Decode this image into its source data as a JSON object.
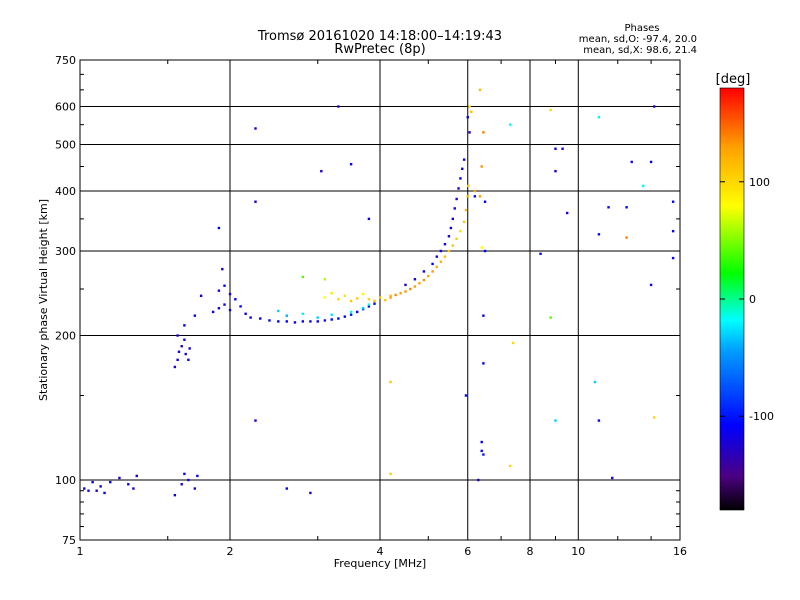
{
  "chart_data": {
    "type": "scatter",
    "title": "Tromsø 20161020 14:18:00–14:19:43",
    "subtitle": "RwPretec (8p)",
    "stats": {
      "header": "Phases",
      "line_o": "mean, sd,O: -97.4, 20.0",
      "line_x": "mean, sd,X: 98.6, 21.4"
    },
    "xlabel": "Frequency [MHz]",
    "ylabel": "Stationary phase Virtual Height [km]",
    "x_scale": "log",
    "y_scale": "log",
    "xlim": [
      1,
      16
    ],
    "ylim": [
      75,
      750
    ],
    "grid": true,
    "x_ticks": [
      1,
      2,
      4,
      6,
      8,
      10,
      16
    ],
    "x_tick_labels": [
      "1",
      "2",
      "4",
      "6",
      "8",
      "10",
      "16"
    ],
    "y_ticks": [
      75,
      100,
      200,
      300,
      400,
      500,
      600,
      750
    ],
    "y_tick_labels": [
      "75",
      "100",
      "200",
      "300",
      "400",
      "500",
      "600",
      "750"
    ],
    "colorbar": {
      "label": "[deg]",
      "range": [
        -180,
        180
      ],
      "ticks": [
        100,
        0,
        -100
      ],
      "tick_labels": [
        "100",
        "0",
        "-100"
      ],
      "colormap": [
        "#000000",
        "#4b0082",
        "#0000ff",
        "#00a0ff",
        "#00ffff",
        "#00ff00",
        "#ffff00",
        "#ffa000",
        "#ff0000"
      ]
    },
    "series": [
      {
        "points": [
          [
            1.02,
            96,
            -115
          ],
          [
            1.04,
            95,
            -120
          ],
          [
            1.06,
            99,
            -110
          ],
          [
            1.08,
            95,
            -125
          ],
          [
            1.1,
            97,
            -118
          ],
          [
            1.12,
            94,
            -112
          ],
          [
            1.15,
            99,
            -108
          ],
          [
            1.2,
            101,
            -120
          ],
          [
            1.25,
            98,
            -115
          ],
          [
            1.3,
            102,
            -118
          ],
          [
            1.28,
            96,
            -122
          ],
          [
            1.55,
            93,
            -115
          ],
          [
            1.6,
            98,
            -120
          ],
          [
            1.62,
            103,
            -110
          ],
          [
            1.65,
            100,
            -118
          ],
          [
            1.7,
            96,
            -125
          ],
          [
            1.72,
            102,
            -112
          ],
          [
            1.55,
            172,
            -120
          ],
          [
            1.57,
            178,
            -115
          ],
          [
            1.58,
            185,
            -118
          ],
          [
            1.6,
            190,
            -125
          ],
          [
            1.62,
            196,
            -110
          ],
          [
            1.63,
            183,
            -122
          ],
          [
            1.65,
            178,
            -115
          ],
          [
            1.66,
            188,
            -118
          ],
          [
            1.57,
            200,
            -120
          ],
          [
            1.62,
            210,
            -110
          ],
          [
            1.7,
            220,
            -115
          ],
          [
            1.75,
            242,
            -118
          ],
          [
            1.85,
            224,
            -110
          ],
          [
            1.9,
            228,
            -115
          ],
          [
            1.95,
            232,
            -118
          ],
          [
            2.0,
            226,
            -120
          ],
          [
            2.05,
            238,
            -110
          ],
          [
            2.1,
            230,
            -105
          ],
          [
            2.15,
            222,
            -115
          ],
          [
            2.2,
            218,
            -118
          ],
          [
            2.3,
            217,
            -110
          ],
          [
            2.4,
            215,
            -105
          ],
          [
            2.5,
            214,
            -110
          ],
          [
            2.6,
            214,
            -108
          ],
          [
            2.7,
            213,
            -112
          ],
          [
            2.8,
            214,
            -110
          ],
          [
            2.9,
            214,
            -105
          ],
          [
            3.0,
            214,
            -108
          ],
          [
            3.1,
            215,
            -100
          ],
          [
            3.2,
            216,
            -110
          ],
          [
            3.3,
            217,
            -105
          ],
          [
            3.4,
            219,
            -108
          ],
          [
            3.5,
            221,
            -100
          ],
          [
            3.6,
            224,
            -105
          ],
          [
            3.7,
            227,
            -100
          ],
          [
            3.8,
            230,
            -110
          ],
          [
            3.9,
            233,
            -105
          ],
          [
            1.9,
            248,
            -118
          ],
          [
            1.95,
            254,
            -112
          ],
          [
            2.0,
            244,
            -120
          ],
          [
            1.93,
            275,
            -120
          ],
          [
            4.5,
            255,
            -120
          ],
          [
            4.7,
            262,
            -118
          ],
          [
            4.9,
            272,
            -115
          ],
          [
            5.1,
            282,
            -110
          ],
          [
            5.2,
            292,
            -118
          ],
          [
            5.3,
            300,
            -112
          ],
          [
            5.4,
            310,
            -118
          ],
          [
            5.5,
            322,
            -120
          ],
          [
            5.55,
            335,
            -115
          ],
          [
            5.6,
            350,
            -118
          ],
          [
            5.65,
            368,
            -112
          ],
          [
            5.7,
            385,
            -120
          ],
          [
            5.75,
            405,
            -118
          ],
          [
            5.8,
            425,
            -110
          ],
          [
            5.85,
            445,
            -115
          ],
          [
            5.9,
            465,
            -112
          ],
          [
            3.3,
            600,
            -120
          ],
          [
            2.25,
            540,
            -115
          ],
          [
            3.05,
            440,
            -125
          ],
          [
            3.5,
            455,
            -115
          ],
          [
            3.8,
            350,
            -110
          ],
          [
            1.9,
            335,
            -110
          ],
          [
            2.25,
            380,
            -118
          ],
          [
            2.25,
            133,
            -118
          ],
          [
            2.6,
            96,
            -110
          ],
          [
            2.9,
            94,
            -130
          ],
          [
            5.95,
            150,
            -115
          ],
          [
            6.3,
            100,
            -125
          ],
          [
            6.4,
            120,
            -110
          ],
          [
            6.4,
            115,
            -105
          ],
          [
            6.45,
            113,
            -100
          ],
          [
            6.45,
            175,
            -115
          ],
          [
            6.45,
            220,
            -110
          ],
          [
            6.5,
            300,
            -112
          ],
          [
            6.0,
            570,
            -115
          ],
          [
            6.05,
            530,
            -120
          ],
          [
            6.2,
            390,
            -110
          ],
          [
            6.5,
            380,
            -110
          ],
          [
            9.0,
            490,
            -115
          ],
          [
            9.3,
            490,
            -118
          ],
          [
            9.5,
            360,
            -120
          ],
          [
            9.0,
            440,
            -125
          ],
          [
            8.4,
            296,
            -110
          ],
          [
            11.0,
            325,
            -110
          ],
          [
            11.5,
            370,
            -112
          ],
          [
            12.5,
            370,
            -108
          ],
          [
            12.8,
            460,
            -118
          ],
          [
            14.0,
            460,
            -115
          ],
          [
            14.2,
            600,
            -118
          ],
          [
            14.0,
            255,
            -115
          ],
          [
            15.5,
            290,
            -110
          ],
          [
            15.5,
            330,
            -112
          ],
          [
            15.5,
            380,
            -115
          ],
          [
            11.7,
            101,
            -120
          ],
          [
            11.0,
            133,
            -115
          ]
        ]
      },
      {
        "points": [
          [
            2.5,
            225,
            -30
          ],
          [
            2.6,
            220,
            -40
          ],
          [
            2.8,
            222,
            -20
          ],
          [
            3.0,
            218,
            -30
          ],
          [
            3.2,
            221,
            -25
          ],
          [
            3.5,
            224,
            -20
          ],
          [
            3.7,
            228,
            -30
          ],
          [
            3.8,
            232,
            -15
          ],
          [
            2.8,
            265,
            40
          ],
          [
            3.1,
            262,
            60
          ],
          [
            3.1,
            240,
            80
          ],
          [
            3.2,
            245,
            90
          ],
          [
            3.3,
            238,
            100
          ],
          [
            3.4,
            242,
            95
          ],
          [
            3.5,
            236,
            110
          ],
          [
            3.6,
            239,
            105
          ],
          [
            3.7,
            244,
            85
          ],
          [
            3.8,
            238,
            100
          ],
          [
            3.9,
            236,
            115
          ],
          [
            4.0,
            240,
            105
          ],
          [
            4.1,
            237,
            110
          ],
          [
            4.2,
            242,
            120
          ],
          [
            4.2,
            240,
            130
          ],
          [
            4.3,
            243,
            135
          ],
          [
            4.4,
            245,
            128
          ],
          [
            4.5,
            247,
            132
          ],
          [
            4.6,
            250,
            138
          ],
          [
            4.7,
            253,
            130
          ],
          [
            4.8,
            257,
            125
          ],
          [
            4.9,
            261,
            135
          ],
          [
            5.0,
            266,
            128
          ],
          [
            5.1,
            272,
            132
          ],
          [
            5.2,
            278,
            122
          ],
          [
            5.3,
            285,
            118
          ],
          [
            5.4,
            292,
            115
          ],
          [
            5.5,
            300,
            110
          ],
          [
            5.6,
            308,
            108
          ],
          [
            5.7,
            318,
            105
          ],
          [
            5.8,
            330,
            100
          ],
          [
            5.9,
            345,
            110
          ],
          [
            5.95,
            365,
            115
          ],
          [
            6.0,
            390,
            118
          ],
          [
            6.02,
            410,
            100
          ],
          [
            6.05,
            600,
            95
          ],
          [
            6.1,
            585,
            115
          ],
          [
            6.2,
            400,
            125
          ],
          [
            6.35,
            390,
            130
          ],
          [
            6.4,
            450,
            135
          ],
          [
            6.45,
            530,
            140
          ],
          [
            6.35,
            650,
            118
          ],
          [
            6.4,
            305,
            80
          ],
          [
            4.2,
            160,
            110
          ],
          [
            4.2,
            103,
            105
          ],
          [
            7.3,
            107,
            100
          ],
          [
            7.4,
            193,
            100
          ],
          [
            8.8,
            218,
            40
          ],
          [
            9.0,
            133,
            -30
          ],
          [
            8.8,
            590,
            100
          ],
          [
            7.3,
            550,
            -15
          ],
          [
            10.8,
            160,
            -30
          ],
          [
            11.0,
            570,
            -20
          ],
          [
            12.5,
            320,
            140
          ],
          [
            14.2,
            135,
            100
          ],
          [
            13.5,
            410,
            -20
          ]
        ]
      }
    ]
  }
}
